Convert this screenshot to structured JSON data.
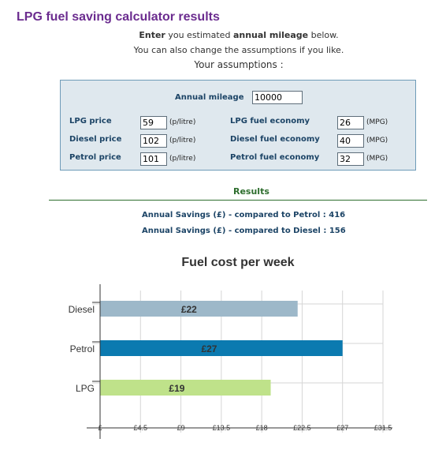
{
  "page": {
    "title": "LPG fuel saving calculator results",
    "intro1_a": "Enter",
    "intro1_b": " you estimated ",
    "intro1_c": "annual mileage",
    "intro1_d": " below.",
    "intro2": "You can also change the assumptions if you like.",
    "intro3": "Your assumptions :"
  },
  "assumptions": {
    "annual_mileage_label": "Annual mileage",
    "annual_mileage_value": "10000",
    "lpg_price_label": "LPG price",
    "lpg_price_value": "59",
    "diesel_price_label": "Diesel price",
    "diesel_price_value": "102",
    "petrol_price_label": "Petrol price",
    "petrol_price_value": "101",
    "price_unit": "(p/litre)",
    "lpg_economy_label": "LPG fuel economy",
    "lpg_economy_value": "26",
    "diesel_economy_label": "Diesel fuel economy",
    "diesel_economy_value": "40",
    "petrol_economy_label": "Petrol fuel economy",
    "petrol_economy_value": "32",
    "economy_unit": "(MPG)"
  },
  "results": {
    "title": "Results",
    "saving_petrol": "Annual Savings (£) - compared to Petrol : 416",
    "saving_diesel": "Annual Savings (£) - compared to Diesel : 156"
  },
  "chart_data": {
    "type": "bar",
    "orientation": "horizontal",
    "title": "Fuel cost per week",
    "categories": [
      "Diesel",
      "Petrol",
      "LPG"
    ],
    "values": [
      22,
      27,
      19
    ],
    "data_labels": [
      "£22",
      "£27",
      "£19"
    ],
    "colors": [
      "#9db8c9",
      "#0b7ab0",
      "#bfe28a"
    ],
    "xlim": [
      0,
      31.5
    ],
    "xticks": [
      0,
      4.5,
      9,
      13.5,
      18,
      22.5,
      27,
      31.5
    ],
    "xtick_labels": [
      "£",
      "£4.5",
      "£9",
      "£13.5",
      "£18",
      "£22.5",
      "£27",
      "£31.5"
    ],
    "grid": true
  }
}
